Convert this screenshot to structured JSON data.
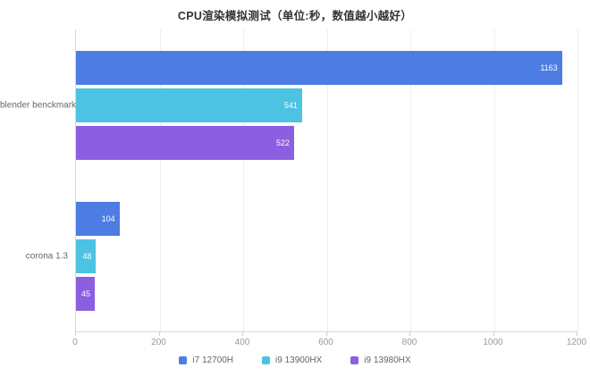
{
  "title": "CPU渲染模拟测试（单位:秒，数值越小越好）",
  "chart_data": {
    "type": "bar",
    "orientation": "horizontal",
    "title": "CPU渲染模拟测试（单位:秒，数值越小越好）",
    "categories": [
      "blender benckmark",
      "corona 1.3"
    ],
    "series": [
      {
        "name": "i7 12700H",
        "color": "#4d7ce2",
        "values": [
          1163,
          104
        ]
      },
      {
        "name": "i9 13900HX",
        "color": "#4cc3e2",
        "values": [
          541,
          48
        ]
      },
      {
        "name": "i9 13980HX",
        "color": "#8b5fe0",
        "values": [
          522,
          45
        ]
      }
    ],
    "xlabel": "",
    "ylabel": "",
    "xlim": [
      0,
      1200
    ],
    "x_ticks": [
      0,
      200,
      400,
      600,
      800,
      1000,
      1200
    ],
    "grid": true,
    "value_labels": "inside-end",
    "legend_position": "bottom"
  }
}
